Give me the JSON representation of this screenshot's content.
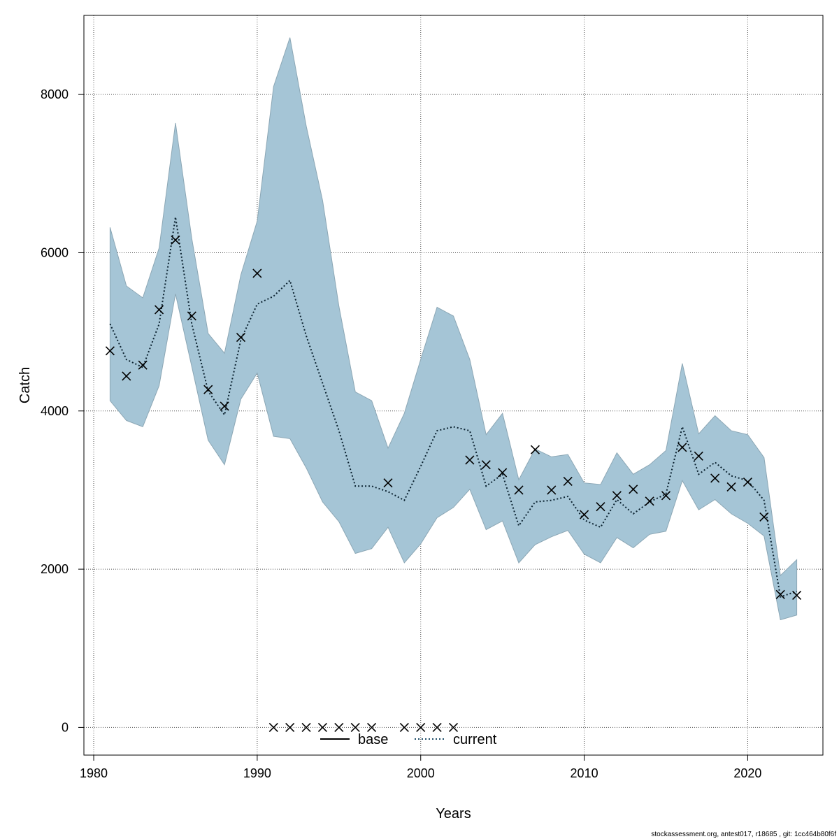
{
  "chart_data": {
    "type": "line",
    "xlabel": "Years",
    "ylabel": "Catch",
    "xlim": [
      1979.4,
      1982.4
    ],
    "x_range": [
      1979.4,
      2024.6
    ],
    "ylim": [
      -350,
      9000
    ],
    "x_ticks": [
      "1980",
      "1990",
      "2000",
      "2010",
      "2020"
    ],
    "y_ticks": [
      "0",
      "2000",
      "4000",
      "6000",
      "8000"
    ],
    "grid": true,
    "legend_position": "bottom-center",
    "legend": [
      {
        "label": "base",
        "color": "#000000",
        "dash": "solid"
      },
      {
        "label": "current",
        "color": "#1a4a66",
        "dash": "dotted"
      }
    ],
    "colors": {
      "band_fill": "#a5c5d6",
      "band_stroke": "#8ca7b5",
      "line": "#0b2230",
      "points": "#000000"
    },
    "years": [
      1981,
      1982,
      1983,
      1984,
      1985,
      1986,
      1987,
      1988,
      1989,
      1990,
      1991,
      1992,
      1993,
      1994,
      1995,
      1996,
      1997,
      1998,
      1999,
      2000,
      2001,
      2002,
      2003,
      2004,
      2005,
      2006,
      2007,
      2008,
      2009,
      2010,
      2011,
      2012,
      2013,
      2014,
      2015,
      2016,
      2017,
      2018,
      2019,
      2020,
      2021,
      2022,
      2023
    ],
    "series": [
      {
        "name": "current",
        "values": [
          5100,
          4650,
          4550,
          5100,
          6450,
          5100,
          4250,
          3950,
          4900,
          5350,
          5450,
          5650,
          4950,
          4350,
          3750,
          3050,
          3050,
          2980,
          2870,
          3300,
          3750,
          3800,
          3750,
          3050,
          3200,
          2550,
          2850,
          2870,
          2920,
          2620,
          2530,
          2880,
          2700,
          2850,
          2950,
          3800,
          3200,
          3350,
          3180,
          3120,
          2870,
          1650,
          1720
        ]
      },
      {
        "name": "upper",
        "values": [
          6320,
          5580,
          5430,
          6060,
          7640,
          6180,
          4980,
          4730,
          5720,
          6400,
          8100,
          8720,
          7600,
          6660,
          5320,
          4240,
          4130,
          3530,
          3970,
          4650,
          5310,
          5200,
          4650,
          3700,
          3970,
          3130,
          3520,
          3420,
          3450,
          3090,
          3070,
          3470,
          3200,
          3320,
          3500,
          4600,
          3710,
          3940,
          3750,
          3700,
          3410,
          1920,
          2120
        ]
      },
      {
        "name": "lower",
        "values": [
          4130,
          3880,
          3800,
          4320,
          5480,
          4560,
          3630,
          3320,
          4150,
          4480,
          3680,
          3650,
          3280,
          2850,
          2600,
          2200,
          2260,
          2530,
          2080,
          2320,
          2650,
          2780,
          3010,
          2500,
          2610,
          2080,
          2310,
          2410,
          2490,
          2190,
          2080,
          2400,
          2270,
          2440,
          2480,
          3120,
          2750,
          2880,
          2700,
          2580,
          2420,
          1360,
          1420
        ]
      }
    ],
    "observed": {
      "name": "observed catch",
      "years": [
        1981,
        1982,
        1983,
        1984,
        1985,
        1986,
        1987,
        1988,
        1989,
        1990,
        1991,
        1992,
        1993,
        1994,
        1995,
        1996,
        1997,
        1998,
        1999,
        2000,
        2001,
        2002,
        2003,
        2004,
        2005,
        2006,
        2007,
        2008,
        2009,
        2010,
        2011,
        2012,
        2013,
        2014,
        2015,
        2016,
        2017,
        2018,
        2019,
        2020,
        2021,
        2022,
        2023
      ],
      "values": [
        4760,
        4440,
        4580,
        5280,
        6160,
        5200,
        4270,
        4060,
        4930,
        5740,
        0,
        0,
        0,
        0,
        0,
        0,
        0,
        3090,
        0,
        0,
        0,
        0,
        3380,
        3320,
        3220,
        3000,
        3510,
        3000,
        3110,
        2690,
        2790,
        2930,
        3010,
        2860,
        2930,
        3540,
        3430,
        3150,
        3040,
        3100,
        2660,
        1680,
        1670
      ]
    }
  },
  "footer": "stockassessment.org, antest017, r18685 , git: 1cc464b80f6f"
}
